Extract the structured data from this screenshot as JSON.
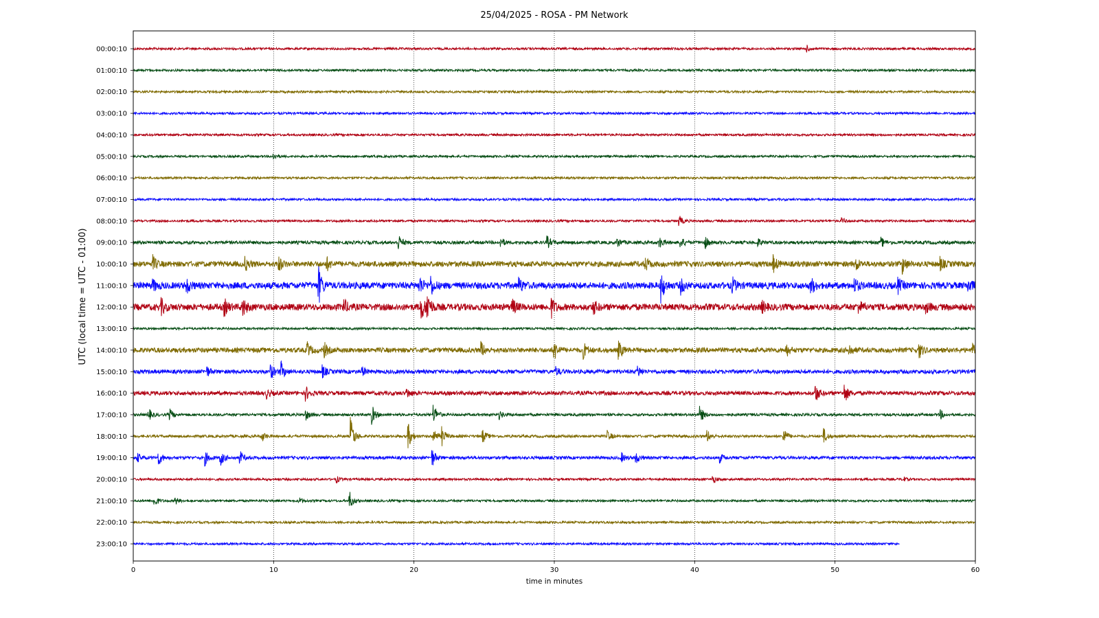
{
  "chart_data": {
    "type": "line",
    "title": "25/04/2025 - ROSA - PM Network",
    "xlabel": "time in minutes",
    "ylabel": "UTC (local time = UTC - 01:00)",
    "xlim": [
      0,
      60
    ],
    "x_ticks": [
      "0",
      "10",
      "20",
      "30",
      "40",
      "50",
      "60"
    ],
    "grid": "vertical dotted lines at 10-minute intervals",
    "color_cycle": [
      "#b00012",
      "#064d14",
      "#7f6a00",
      "#0a0aff"
    ],
    "series": [
      {
        "label": "00:00:10",
        "color": "#b00012",
        "noise": 1.0,
        "end_minute": 60,
        "events": [
          [
            48.0,
            2.0
          ]
        ]
      },
      {
        "label": "01:00:10",
        "color": "#064d14",
        "noise": 1.0,
        "end_minute": 60,
        "events": []
      },
      {
        "label": "02:00:10",
        "color": "#7f6a00",
        "noise": 1.0,
        "end_minute": 60,
        "events": []
      },
      {
        "label": "03:00:10",
        "color": "#0a0aff",
        "noise": 1.0,
        "end_minute": 60,
        "events": []
      },
      {
        "label": "04:00:10",
        "color": "#b00012",
        "noise": 1.0,
        "end_minute": 60,
        "events": []
      },
      {
        "label": "05:00:10",
        "color": "#064d14",
        "noise": 1.0,
        "end_minute": 60,
        "events": [
          [
            10.0,
            2.0
          ]
        ]
      },
      {
        "label": "06:00:10",
        "color": "#7f6a00",
        "noise": 1.0,
        "end_minute": 60,
        "events": []
      },
      {
        "label": "07:00:10",
        "color": "#0a0aff",
        "noise": 1.0,
        "end_minute": 60,
        "events": []
      },
      {
        "label": "08:00:10",
        "color": "#b00012",
        "noise": 1.0,
        "end_minute": 60,
        "events": [
          [
            38.9,
            3.5
          ],
          [
            50.5,
            2.0
          ]
        ]
      },
      {
        "label": "09:00:10",
        "color": "#064d14",
        "noise": 1.5,
        "end_minute": 60,
        "events": [
          [
            18.9,
            5.0
          ],
          [
            26.2,
            3.0
          ],
          [
            29.5,
            4.0
          ],
          [
            34.5,
            3.0
          ],
          [
            37.5,
            3.5
          ],
          [
            39.0,
            3.5
          ],
          [
            40.7,
            4.5
          ],
          [
            44.5,
            2.5
          ],
          [
            53.3,
            3.0
          ]
        ]
      },
      {
        "label": "10:00:10",
        "color": "#7f6a00",
        "noise": 2.5,
        "end_minute": 60,
        "events": [
          [
            1.4,
            5.0
          ],
          [
            8.0,
            4.0
          ],
          [
            10.3,
            6.0
          ],
          [
            13.8,
            4.0
          ],
          [
            36.5,
            4.0
          ],
          [
            45.6,
            5.5
          ],
          [
            51.5,
            4.0
          ],
          [
            54.8,
            6.0
          ],
          [
            57.5,
            4.0
          ]
        ]
      },
      {
        "label": "11:00:10",
        "color": "#0a0aff",
        "noise": 3.0,
        "end_minute": 60,
        "events": [
          [
            1.4,
            4.0
          ],
          [
            3.8,
            5.0
          ],
          [
            13.2,
            13.0
          ],
          [
            20.4,
            6.0
          ],
          [
            21.2,
            6.5
          ],
          [
            27.5,
            5.0
          ],
          [
            37.6,
            11.0
          ],
          [
            39.0,
            5.0
          ],
          [
            42.7,
            4.5
          ],
          [
            48.3,
            5.5
          ],
          [
            51.4,
            4.5
          ],
          [
            54.5,
            4.5
          ],
          [
            59.5,
            4.5
          ]
        ]
      },
      {
        "label": "12:00:10",
        "color": "#b00012",
        "noise": 3.0,
        "end_minute": 60,
        "events": [
          [
            2.0,
            5.0
          ],
          [
            6.5,
            5.0
          ],
          [
            7.8,
            6.0
          ],
          [
            15.0,
            5.0
          ],
          [
            20.5,
            9.0
          ],
          [
            20.9,
            12.0
          ],
          [
            27.0,
            5.5
          ],
          [
            29.8,
            6.0
          ],
          [
            32.8,
            4.5
          ],
          [
            44.8,
            3.5
          ],
          [
            51.7,
            4.0
          ],
          [
            56.5,
            3.0
          ]
        ]
      },
      {
        "label": "13:00:10",
        "color": "#064d14",
        "noise": 1.0,
        "end_minute": 60,
        "events": []
      },
      {
        "label": "14:00:10",
        "color": "#7f6a00",
        "noise": 2.2,
        "end_minute": 60,
        "events": [
          [
            12.4,
            5.0
          ],
          [
            13.6,
            5.0
          ],
          [
            24.8,
            5.0
          ],
          [
            30.0,
            6.5
          ],
          [
            32.1,
            5.0
          ],
          [
            34.6,
            6.0
          ],
          [
            46.5,
            4.5
          ],
          [
            51.0,
            4.0
          ],
          [
            56.0,
            5.0
          ],
          [
            59.8,
            4.5
          ]
        ]
      },
      {
        "label": "15:00:10",
        "color": "#0a0aff",
        "noise": 1.8,
        "end_minute": 60,
        "events": [
          [
            5.2,
            4.0
          ],
          [
            9.8,
            5.0
          ],
          [
            10.5,
            7.0
          ],
          [
            13.5,
            4.0
          ],
          [
            16.3,
            3.0
          ],
          [
            30.1,
            3.0
          ],
          [
            35.9,
            4.5
          ]
        ]
      },
      {
        "label": "16:00:10",
        "color": "#b00012",
        "noise": 1.8,
        "end_minute": 60,
        "events": [
          [
            9.5,
            3.0
          ],
          [
            12.3,
            4.5
          ],
          [
            19.5,
            3.0
          ],
          [
            48.6,
            6.5
          ],
          [
            50.7,
            6.0
          ]
        ]
      },
      {
        "label": "17:00:10",
        "color": "#064d14",
        "noise": 1.2,
        "end_minute": 60,
        "events": [
          [
            1.1,
            4.0
          ],
          [
            2.6,
            4.0
          ],
          [
            12.3,
            3.5
          ],
          [
            17.0,
            6.5
          ],
          [
            21.4,
            7.5
          ],
          [
            26.1,
            3.0
          ],
          [
            40.4,
            5.5
          ],
          [
            57.5,
            3.0
          ]
        ]
      },
      {
        "label": "18:00:10",
        "color": "#7f6a00",
        "noise": 1.2,
        "end_minute": 60,
        "events": [
          [
            9.2,
            3.0
          ],
          [
            15.5,
            13.0
          ],
          [
            19.6,
            8.5
          ],
          [
            21.4,
            5.5
          ],
          [
            22.0,
            6.0
          ],
          [
            24.9,
            4.5
          ],
          [
            33.8,
            3.5
          ],
          [
            40.9,
            4.0
          ],
          [
            46.3,
            6.5
          ],
          [
            49.2,
            5.0
          ]
        ]
      },
      {
        "label": "19:00:10",
        "color": "#0a0aff",
        "noise": 1.4,
        "end_minute": 60,
        "events": [
          [
            0.3,
            3.0
          ],
          [
            1.8,
            5.0
          ],
          [
            5.1,
            5.0
          ],
          [
            6.2,
            5.5
          ],
          [
            7.6,
            4.5
          ],
          [
            21.3,
            6.0
          ],
          [
            34.8,
            3.0
          ],
          [
            35.8,
            4.0
          ],
          [
            41.8,
            3.0
          ]
        ]
      },
      {
        "label": "20:00:10",
        "color": "#b00012",
        "noise": 1.0,
        "end_minute": 60,
        "events": [
          [
            14.5,
            2.0
          ],
          [
            41.3,
            2.5
          ],
          [
            54.8,
            2.0
          ]
        ]
      },
      {
        "label": "21:00:10",
        "color": "#064d14",
        "noise": 1.0,
        "end_minute": 60,
        "events": [
          [
            1.5,
            4.0
          ],
          [
            3.0,
            2.5
          ],
          [
            11.8,
            2.5
          ],
          [
            15.4,
            6.5
          ]
        ]
      },
      {
        "label": "22:00:10",
        "color": "#7f6a00",
        "noise": 1.0,
        "end_minute": 60,
        "events": []
      },
      {
        "label": "23:00:10",
        "color": "#0a0aff",
        "noise": 1.0,
        "end_minute": 54.6,
        "events": []
      }
    ]
  }
}
